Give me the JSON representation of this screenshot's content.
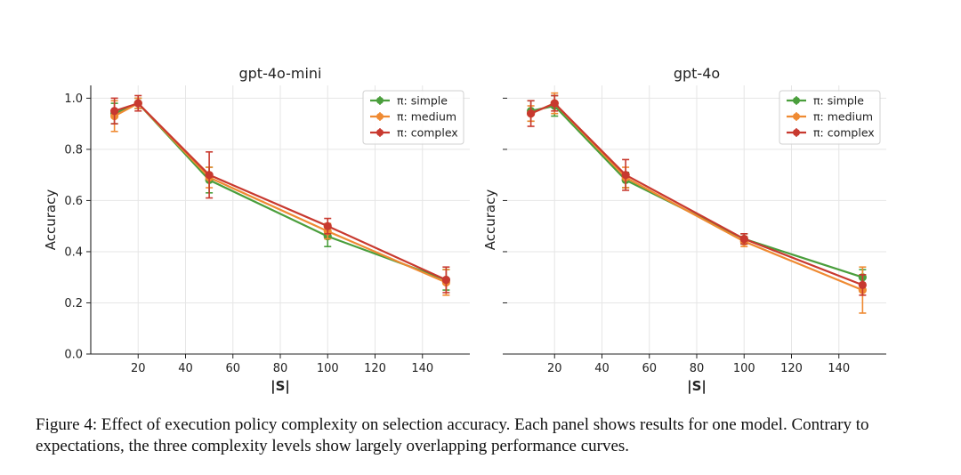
{
  "figure": {
    "caption_label": "Figure 4:",
    "caption_text": "Effect of execution policy complexity on selection accuracy. Each panel shows results for one model. Contrary to expectations, the three complexity levels show largely overlapping performance curves."
  },
  "colors": {
    "simple": "#4a9e3c",
    "medium": "#ef8a32",
    "complex": "#c8392f"
  },
  "chart_data": [
    {
      "type": "line",
      "title": "gpt-4o-mini",
      "xlabel": "|S|",
      "ylabel": "Accuracy",
      "xlim": [
        0,
        160
      ],
      "ylim": [
        0.0,
        1.05
      ],
      "xticks": [
        20,
        40,
        60,
        80,
        100,
        120,
        140
      ],
      "yticks": [
        0.0,
        0.2,
        0.4,
        0.6,
        0.8,
        1.0
      ],
      "grid": true,
      "legend_position": "top-right",
      "x": [
        10,
        20,
        50,
        100,
        150
      ],
      "series": [
        {
          "name": "π: simple",
          "color_key": "simple",
          "values": [
            0.94,
            0.98,
            0.68,
            0.46,
            0.29
          ],
          "errors": [
            0.04,
            0.02,
            0.05,
            0.04,
            0.04
          ]
        },
        {
          "name": "π: medium",
          "color_key": "medium",
          "values": [
            0.93,
            0.98,
            0.69,
            0.48,
            0.28
          ],
          "errors": [
            0.06,
            0.02,
            0.04,
            0.03,
            0.05
          ]
        },
        {
          "name": "π: complex",
          "color_key": "complex",
          "values": [
            0.95,
            0.98,
            0.7,
            0.5,
            0.29
          ],
          "errors": [
            0.05,
            0.03,
            0.09,
            0.03,
            0.05
          ]
        }
      ]
    },
    {
      "type": "line",
      "title": "gpt-4o",
      "xlabel": "|S|",
      "ylabel": "Accuracy",
      "xlim": [
        0,
        160
      ],
      "ylim": [
        0.0,
        1.05
      ],
      "xticks": [
        20,
        40,
        60,
        80,
        100,
        120,
        140
      ],
      "yticks": [
        0.0,
        0.2,
        0.4,
        0.6,
        0.8,
        1.0
      ],
      "grid": true,
      "legend_position": "top-right",
      "x": [
        10,
        20,
        50,
        100,
        150
      ],
      "series": [
        {
          "name": "π: simple",
          "color_key": "simple",
          "values": [
            0.95,
            0.97,
            0.68,
            0.45,
            0.3
          ],
          "errors": [
            0.04,
            0.04,
            0.03,
            0.02,
            0.03
          ]
        },
        {
          "name": "π: medium",
          "color_key": "medium",
          "values": [
            0.94,
            0.98,
            0.69,
            0.44,
            0.25
          ],
          "errors": [
            0.03,
            0.04,
            0.04,
            0.02,
            0.09
          ]
        },
        {
          "name": "π: complex",
          "color_key": "complex",
          "values": [
            0.94,
            0.98,
            0.7,
            0.45,
            0.27
          ],
          "errors": [
            0.05,
            0.03,
            0.06,
            0.02,
            0.04
          ]
        }
      ]
    }
  ]
}
